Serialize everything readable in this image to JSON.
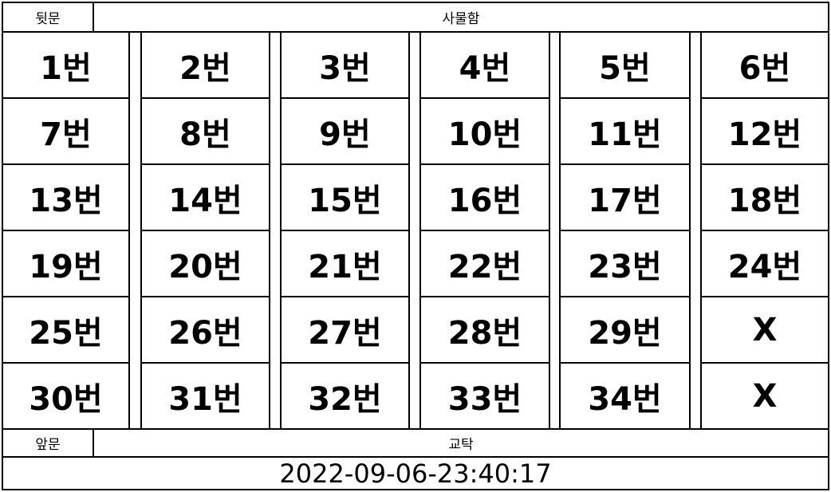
{
  "header": {
    "back_door": "뒷문",
    "locker": "사물함"
  },
  "seats": [
    [
      "1번",
      "2번",
      "3번",
      "4번",
      "5번",
      "6번"
    ],
    [
      "7번",
      "8번",
      "9번",
      "10번",
      "11번",
      "12번"
    ],
    [
      "13번",
      "14번",
      "15번",
      "16번",
      "17번",
      "18번"
    ],
    [
      "19번",
      "20번",
      "21번",
      "22번",
      "23번",
      "24번"
    ],
    [
      "25번",
      "26번",
      "27번",
      "28번",
      "29번",
      "X"
    ],
    [
      "30번",
      "31번",
      "32번",
      "33번",
      "34번",
      "X"
    ]
  ],
  "footer": {
    "front_door": "앞문",
    "teacher_desk": "교탁",
    "timestamp": "2022-09-06-23:40:17"
  }
}
